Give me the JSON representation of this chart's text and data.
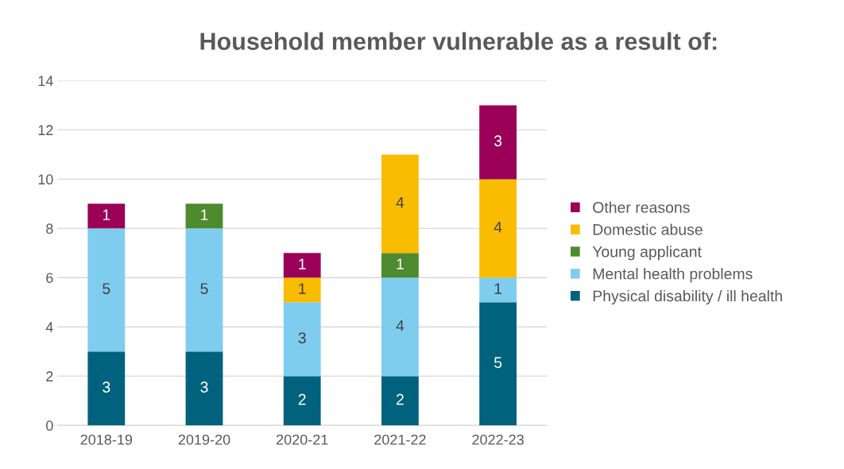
{
  "chart_data": {
    "type": "bar",
    "title": "Household member vulnerable as a result of:",
    "stacked": true,
    "categories": [
      "2018-19",
      "2019-20",
      "2020-21",
      "2021-22",
      "2022-23"
    ],
    "series": [
      {
        "name": "Physical disability / ill health",
        "color": "#00627d",
        "values": [
          3,
          3,
          2,
          2,
          5
        ]
      },
      {
        "name": "Mental health problems",
        "color": "#7fcdee",
        "values": [
          5,
          5,
          3,
          4,
          1
        ]
      },
      {
        "name": "Young applicant",
        "color": "#4e8a2e",
        "values": [
          null,
          1,
          null,
          1,
          null
        ]
      },
      {
        "name": "Domestic abuse",
        "color": "#f9bc00",
        "values": [
          null,
          null,
          1,
          4,
          4
        ]
      },
      {
        "name": "Other reasons",
        "color": "#9b0058",
        "values": [
          1,
          null,
          1,
          null,
          3
        ]
      }
    ],
    "ylim": [
      0,
      14
    ],
    "yticks": [
      0,
      2,
      4,
      6,
      8,
      10,
      12,
      14
    ],
    "grid": "y",
    "legend": "right",
    "data_labels": true
  }
}
